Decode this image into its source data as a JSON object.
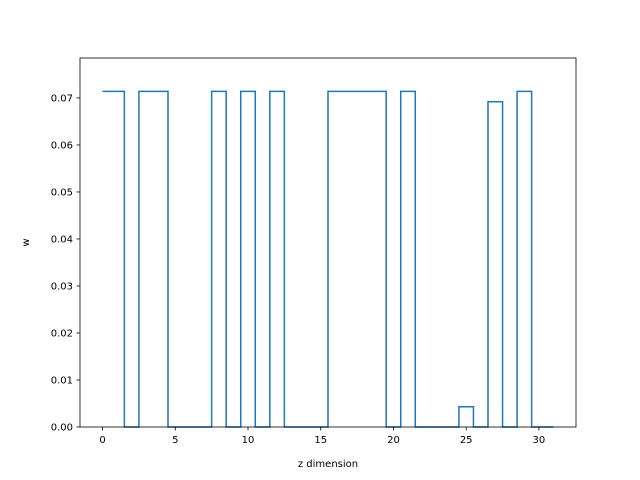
{
  "chart_data": {
    "type": "line",
    "drawstyle": "steps-mid",
    "title": "",
    "xlabel": "z dimension",
    "ylabel": "w",
    "xlim": [
      -1.55,
      32.55
    ],
    "ylim": [
      0.0,
      0.0785
    ],
    "x_ticks": [
      0,
      5,
      10,
      15,
      20,
      25,
      30
    ],
    "y_ticks": [
      0.0,
      0.01,
      0.02,
      0.03,
      0.04,
      0.05,
      0.06,
      0.07
    ],
    "y_tick_labels": [
      "0.00",
      "0.01",
      "0.02",
      "0.03",
      "0.04",
      "0.05",
      "0.06",
      "0.07"
    ],
    "grid": false,
    "series": [
      {
        "color": "#1f77b4",
        "x": [
          0,
          1,
          2,
          3,
          4,
          5,
          6,
          7,
          8,
          9,
          10,
          11,
          12,
          13,
          14,
          15,
          16,
          17,
          18,
          19,
          20,
          21,
          22,
          23,
          24,
          25,
          26,
          27,
          28,
          29,
          30,
          31
        ],
        "y": [
          0.0714,
          0.0714,
          0.0,
          0.0714,
          0.0714,
          0.0,
          0.0,
          0.0,
          0.0714,
          0.0,
          0.0714,
          0.0,
          0.0714,
          0.0,
          0.0,
          0.0,
          0.0714,
          0.0714,
          0.0714,
          0.0714,
          0.0,
          0.0714,
          0.0,
          0.0,
          0.0,
          0.0043,
          0.0,
          0.0692,
          0.0,
          0.0714,
          0.0,
          0.0
        ]
      }
    ]
  }
}
